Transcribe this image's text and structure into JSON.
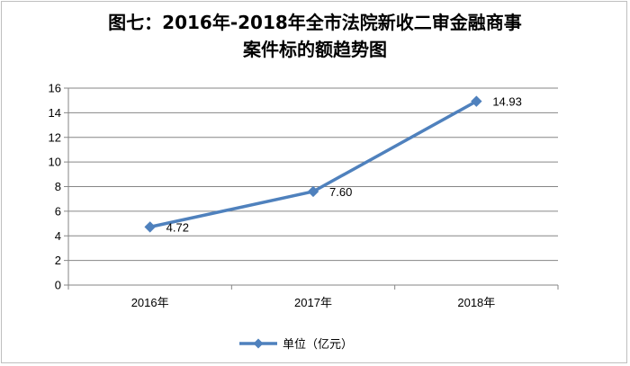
{
  "chart_data": {
    "type": "line",
    "title_lines": [
      "图七：2016年-2018年全市法院新收二审金融商事",
      "案件标的额趋势图"
    ],
    "categories": [
      "2016年",
      "2017年",
      "2018年"
    ],
    "series": [
      {
        "name": "单位（亿元）",
        "values": [
          4.72,
          7.6,
          14.93
        ],
        "labels": [
          "4.72",
          "7.60",
          "14.93"
        ]
      }
    ],
    "ylim": [
      0,
      16
    ],
    "yticks": [
      0,
      2,
      4,
      6,
      8,
      10,
      12,
      14,
      16
    ],
    "grid": true,
    "legend_position": "bottom",
    "colors": {
      "series": "#4f81bd",
      "grid": "#868686",
      "axis": "#868686"
    }
  }
}
